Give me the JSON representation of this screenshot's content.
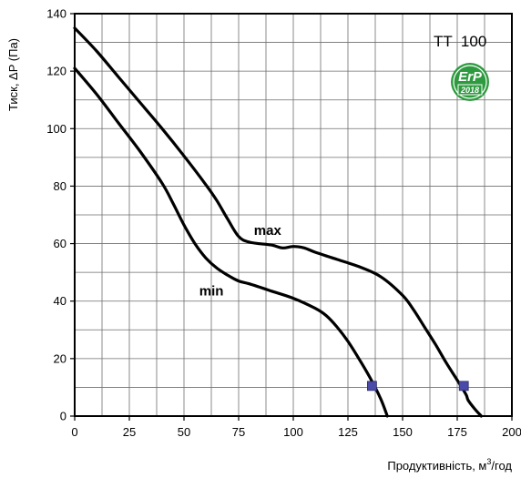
{
  "chart_data": {
    "type": "line",
    "title": "",
    "model_label": "TT  100",
    "badge": {
      "text": "ErP",
      "year": "2018",
      "color": "#2e9a3f"
    },
    "xlabel": "Продуктивність, м",
    "xlabel_sup": "3",
    "xlabel_suffix": "/год",
    "ylabel": "Тиск, ΔP (Па)",
    "xlim": [
      0,
      200
    ],
    "ylim": [
      0,
      140
    ],
    "x_ticks": [
      0,
      25,
      50,
      75,
      100,
      125,
      150,
      175,
      200
    ],
    "y_ticks": [
      0,
      20,
      40,
      60,
      80,
      100,
      120,
      140
    ],
    "grid": true,
    "series": [
      {
        "name": "max",
        "color": "#000000",
        "x": [
          0,
          10,
          20,
          30,
          40,
          50,
          60,
          65,
          70,
          75,
          80,
          90,
          95,
          100,
          105,
          110,
          120,
          130,
          140,
          150,
          155,
          160,
          165,
          170,
          175,
          179,
          180,
          183,
          186
        ],
        "values": [
          135,
          127,
          118,
          109,
          100,
          90.5,
          80.5,
          75,
          68.5,
          62.5,
          60.5,
          59.5,
          58.5,
          59,
          58.5,
          57,
          54.5,
          52,
          48.5,
          42,
          37,
          31,
          25,
          18.5,
          12.5,
          7.5,
          5.5,
          2.5,
          0
        ]
      },
      {
        "name": "min",
        "color": "#000000",
        "x": [
          0,
          10,
          20,
          30,
          40,
          45,
          50,
          55,
          60,
          65,
          70,
          75,
          80,
          90,
          100,
          110,
          115,
          120,
          125,
          130,
          135,
          140,
          143
        ],
        "values": [
          121,
          112,
          102,
          92,
          81,
          74,
          66.5,
          60,
          55,
          51.5,
          49,
          47,
          46,
          43.5,
          41,
          37.5,
          35,
          31,
          26,
          20,
          13.5,
          6,
          0
        ]
      }
    ],
    "markers": [
      {
        "x": 136,
        "y": 10.5,
        "color": "#4a4aa8"
      },
      {
        "x": 178,
        "y": 10.5,
        "color": "#4a4aa8"
      }
    ],
    "series_labels": [
      {
        "text": "max",
        "x": 82,
        "y": 63
      },
      {
        "text": "min",
        "x": 57,
        "y": 42
      }
    ]
  }
}
